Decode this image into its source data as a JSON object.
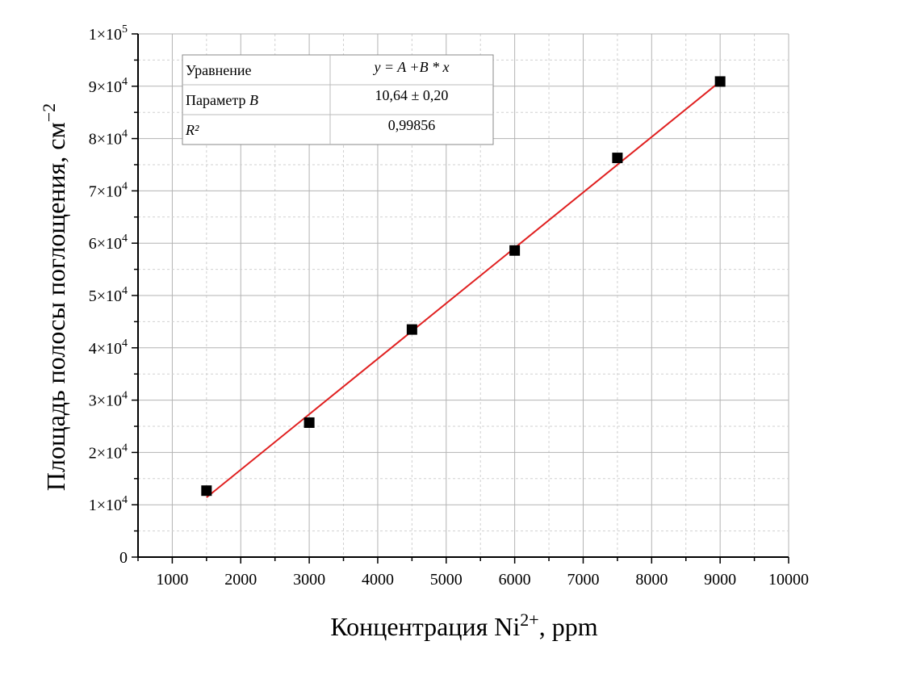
{
  "chart_data": {
    "type": "scatter",
    "xlabel": "Концентрация Ni",
    "xlabel_sup": "2+",
    "xlabel_suffix": ", ppm",
    "ylabel": "Площадь полосы поглощения, см",
    "ylabel_sup": "−2",
    "xlim": [
      500,
      10000
    ],
    "ylim": [
      0,
      100000
    ],
    "x_ticks": [
      1000,
      2000,
      3000,
      4000,
      5000,
      6000,
      7000,
      8000,
      9000,
      10000
    ],
    "x_tick_labels": [
      "1000",
      "2000",
      "3000",
      "4000",
      "5000",
      "6000",
      "7000",
      "8000",
      "9000",
      "10000"
    ],
    "y_ticks": [
      0,
      10000,
      20000,
      30000,
      40000,
      50000,
      60000,
      70000,
      80000,
      90000,
      100000
    ],
    "y_tick_labels": [
      {
        "mant": "0",
        "exp": ""
      },
      {
        "mant": "1×10",
        "exp": "4"
      },
      {
        "mant": "2×10",
        "exp": "4"
      },
      {
        "mant": "3×10",
        "exp": "4"
      },
      {
        "mant": "4×10",
        "exp": "4"
      },
      {
        "mant": "5×10",
        "exp": "4"
      },
      {
        "mant": "6×10",
        "exp": "4"
      },
      {
        "mant": "7×10",
        "exp": "4"
      },
      {
        "mant": "8×10",
        "exp": "4"
      },
      {
        "mant": "9×10",
        "exp": "4"
      },
      {
        "mant": "1×10",
        "exp": "5"
      }
    ],
    "grid": true,
    "series": [
      {
        "marker": "square",
        "color": "#000000",
        "x": [
          1500,
          3000,
          4500,
          6000,
          7500,
          9000
        ],
        "y": [
          12700,
          25700,
          43500,
          58600,
          76300,
          90900
        ]
      }
    ],
    "fit": {
      "color": "#e02020",
      "x_range": [
        1500,
        9000
      ],
      "y_range": [
        11400,
        90900
      ]
    },
    "fit_table": {
      "rows": [
        {
          "label": "Уравнение",
          "value": "y = A +B * x"
        },
        {
          "label": "Параметр",
          "label_italic": "B",
          "value": "10,64 ± 0,20"
        },
        {
          "label": "R²",
          "value": "0,99856"
        }
      ]
    }
  }
}
